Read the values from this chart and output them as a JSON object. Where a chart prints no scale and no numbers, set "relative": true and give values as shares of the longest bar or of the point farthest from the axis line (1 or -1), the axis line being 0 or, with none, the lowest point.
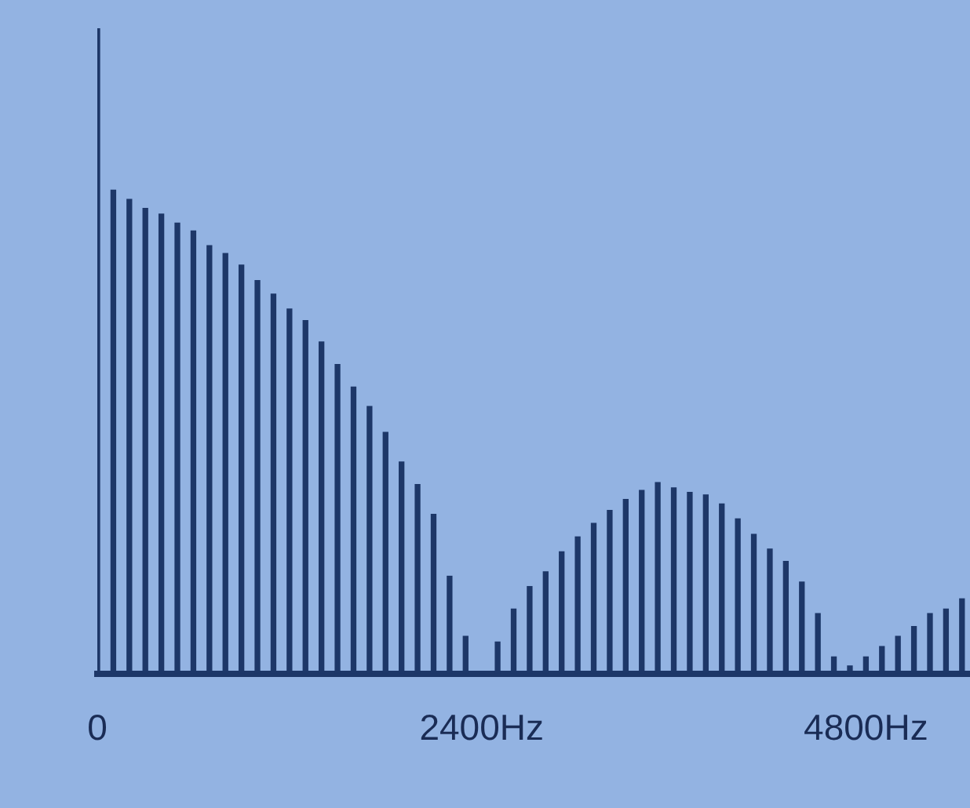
{
  "chart_data": {
    "type": "bar",
    "relative": true,
    "x": [
      0,
      100,
      200,
      300,
      400,
      500,
      600,
      700,
      800,
      900,
      1000,
      1100,
      1200,
      1300,
      1400,
      1500,
      1600,
      1700,
      1800,
      1900,
      2000,
      2100,
      2200,
      2300,
      2400,
      2500,
      2600,
      2700,
      2800,
      2900,
      3000,
      3100,
      3200,
      3300,
      3400,
      3500,
      3600,
      3700,
      3800,
      3900,
      4000,
      4100,
      4200,
      4300,
      4400,
      4500,
      4600,
      4700,
      4800,
      4900,
      5000,
      5100,
      5200,
      5300,
      5400
    ],
    "values": [
      1,
      0.749,
      0.735,
      0.721,
      0.712,
      0.698,
      0.686,
      0.663,
      0.651,
      0.633,
      0.609,
      0.588,
      0.565,
      0.547,
      0.514,
      0.479,
      0.444,
      0.414,
      0.374,
      0.328,
      0.293,
      0.247,
      0.151,
      0.058,
      0,
      0.049,
      0.1,
      0.135,
      0.158,
      0.189,
      0.212,
      0.233,
      0.253,
      0.27,
      0.284,
      0.296,
      0.288,
      0.281,
      0.277,
      0.263,
      0.24,
      0.216,
      0.193,
      0.174,
      0.142,
      0.093,
      0.026,
      0.012,
      0.026,
      0.042,
      0.058,
      0.073,
      0.093,
      0.1,
      0.116
    ],
    "color": "#1d3768",
    "xlim": [
      0,
      5450
    ],
    "xticks": [
      0,
      {
        "value": 2400,
        "label": "2400Hz"
      },
      {
        "value": 4800,
        "label": "4800Hz"
      }
    ],
    "grid": false,
    "legend": false
  }
}
